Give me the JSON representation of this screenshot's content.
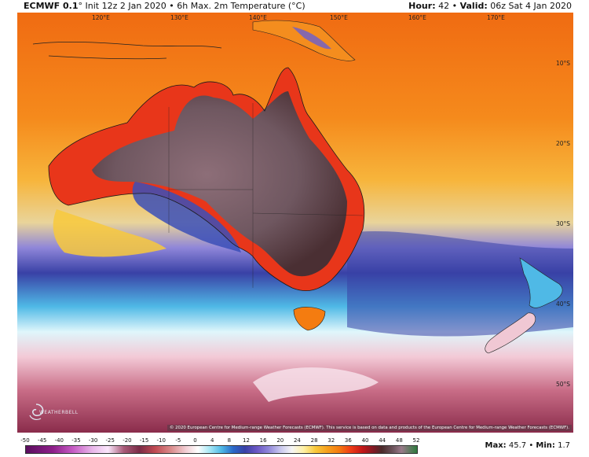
{
  "header": {
    "model": "ECMWF 0.1",
    "degree_mark": "°",
    "subtitle": "Init 12z 2 Jan 2020 • 6h Max. 2m Temperature (°C)",
    "hour_label": "Hour:",
    "hour_value": "42",
    "separator": "•",
    "valid_label": "Valid:",
    "valid_value": "06z Sat 4 Jan 2020"
  },
  "map": {
    "lon_labels": [
      "120°E",
      "130°E",
      "140°E",
      "150°E",
      "160°E",
      "170°E"
    ],
    "lat_labels": [
      "10°S",
      "20°S",
      "30°S",
      "40°S",
      "50°S"
    ],
    "credit": "© 2020 European Centre for Medium-range Weather Forecasts (ECMWF). This service is based on data and products of the European Centre for Medium-range Weather Forecasts (ECMWF).",
    "logo_text": "WEATHERBELL",
    "colors": {
      "tropics": "#f58a1c",
      "hot_inland": "#7b5a66",
      "cool_south": "#3d3e9e",
      "cold_ocean": "#f3c9d6"
    }
  },
  "colorbar": {
    "ticks": [
      "-50",
      "-45",
      "-40",
      "-35",
      "-30",
      "-25",
      "-20",
      "-15",
      "-10",
      "-5",
      "0",
      "4",
      "8",
      "12",
      "16",
      "20",
      "24",
      "28",
      "32",
      "36",
      "40",
      "44",
      "48",
      "52"
    ]
  },
  "stats": {
    "max_label": "Max:",
    "max_value": "45.7",
    "separator": "•",
    "min_label": "Min:",
    "min_value": "1.7"
  }
}
